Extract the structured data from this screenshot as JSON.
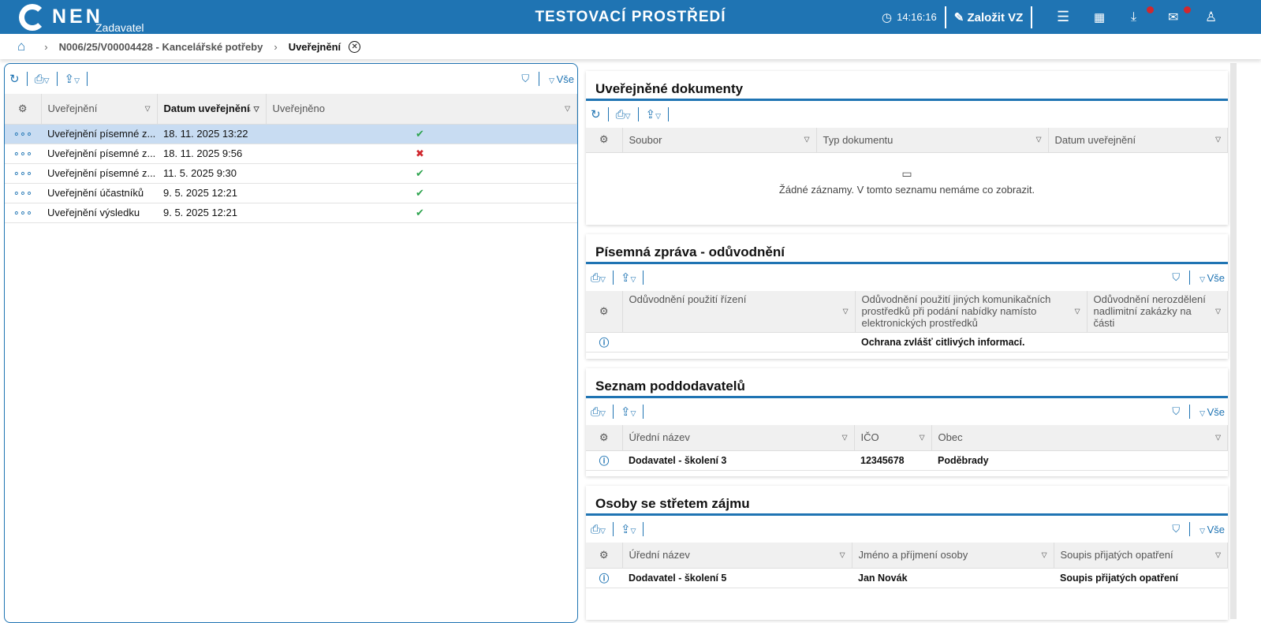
{
  "header": {
    "logo": "NEN",
    "role": "Zadavatel",
    "env_title": "TESTOVACÍ PROSTŘEDÍ",
    "time": "14:16:16",
    "create_label": "Založit VZ",
    "brand_color": "#1f74b3"
  },
  "breadcrumb": {
    "items": [
      "N006/25/V00004428 - Kancelářské potřeby",
      "Uveřejnění"
    ]
  },
  "left": {
    "columns": [
      "Uveřejnění",
      "Datum uveřejnění",
      "Uveřejněno"
    ],
    "filter_all": "Vše",
    "rows": [
      {
        "name": "Uveřejnění písemné z...",
        "date": "18. 11. 2025 13:22",
        "published": "✔",
        "ok": true
      },
      {
        "name": "Uveřejnění písemné z...",
        "date": "18. 11. 2025 9:56",
        "published": "✖",
        "ok": false
      },
      {
        "name": "Uveřejnění písemné z...",
        "date": "11. 5. 2025 9:30",
        "published": "✔",
        "ok": true
      },
      {
        "name": "Uveřejnění účastníků",
        "date": "9. 5. 2025 12:21",
        "published": "✔",
        "ok": true
      },
      {
        "name": "Uveřejnění výsledku",
        "date": "9. 5. 2025 12:21",
        "published": "✔",
        "ok": true
      }
    ]
  },
  "docs": {
    "title": "Uveřejněné dokumenty",
    "columns": [
      "Soubor",
      "Typ dokumentu",
      "Datum uveřejnění"
    ],
    "empty": "Žádné záznamy. V tomto seznamu nemáme co zobrazit."
  },
  "report": {
    "title": "Písemná zpráva - odůvodnění",
    "filter_all": "Vše",
    "columns": [
      "Odůvodnění použití řízení",
      "Odůvodnění použití jiných komunikačních prostředků při podání nabídky namísto elektronických prostředků",
      "Odůvodnění nerozdělení nadlimitní zakázky na části"
    ],
    "row": [
      "",
      "Ochrana zvlášť citlivých informací.",
      ""
    ]
  },
  "subs": {
    "title": "Seznam poddodavatelů",
    "filter_all": "Vše",
    "columns": [
      "Úřední název",
      "IČO",
      "Obec"
    ],
    "row": [
      "Dodavatel - školení 3",
      "12345678",
      "Poděbrady"
    ]
  },
  "conflict": {
    "title": "Osoby se střetem zájmu",
    "filter_all": "Vše",
    "columns": [
      "Úřední název",
      "Jméno a příjmení osoby",
      "Soupis přijatých opatření"
    ],
    "row": [
      "Dodavatel - školení 5",
      "Jan Novák",
      "Soupis přijatých opatření"
    ]
  }
}
